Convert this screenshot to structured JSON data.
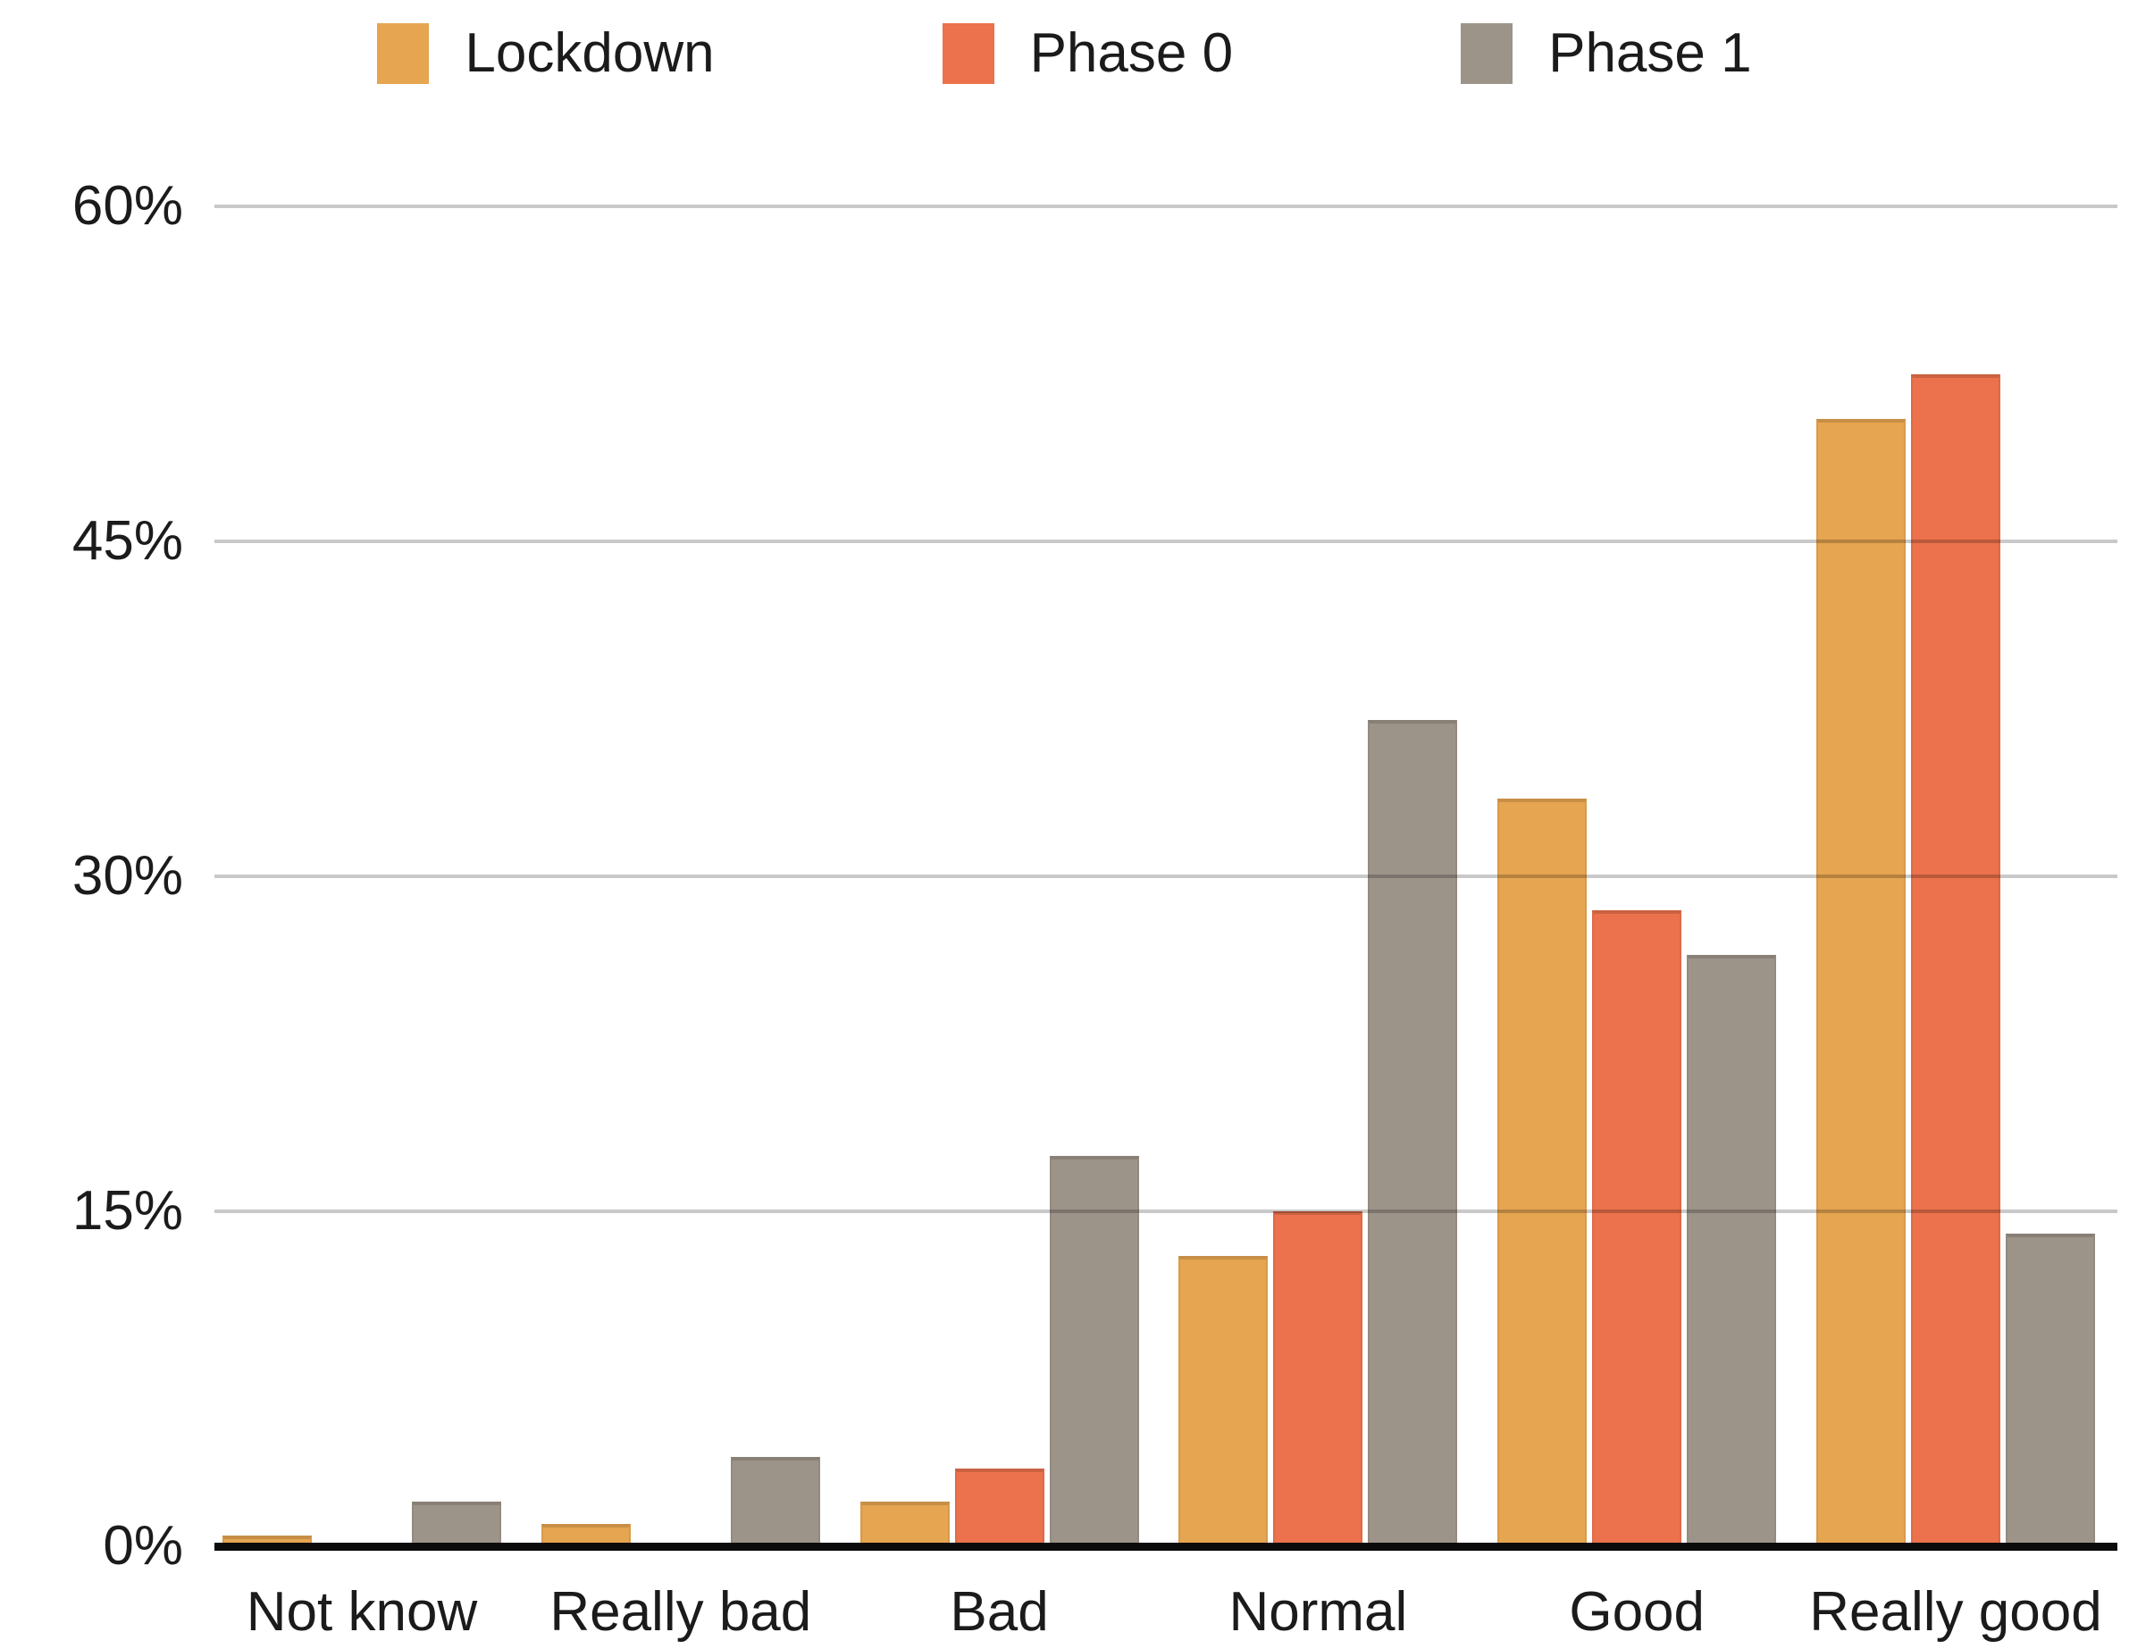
{
  "chart_data": {
    "type": "bar",
    "title": "",
    "xlabel": "",
    "ylabel": "",
    "categories": [
      "Not know",
      "Really bad",
      "Bad",
      "Normal",
      "Good",
      "Really good"
    ],
    "series": [
      {
        "name": "Lockdown",
        "color": "#E6A550",
        "values": [
          0.5,
          1,
          2,
          13,
          33.5,
          50.5
        ]
      },
      {
        "name": "Phase 0",
        "color": "#EB724C",
        "values": [
          0,
          0,
          3.5,
          15,
          28.5,
          52.5
        ]
      },
      {
        "name": "Phase 1",
        "color": "#9D9489",
        "values": [
          2,
          4,
          17.5,
          37,
          26.5,
          14
        ]
      }
    ],
    "y_axis": {
      "unit": "%",
      "ticks": [
        "0%",
        "15%",
        "30%",
        "45%",
        "60%"
      ],
      "tick_values": [
        0,
        15,
        30,
        45,
        60
      ],
      "ylim": [
        0,
        60
      ]
    },
    "grid": "horizontal",
    "legend_position": "top",
    "bar_grouping": "grouped"
  },
  "colors": {
    "background": "#ffffff",
    "text": "#1b1b1b",
    "gridline": "#c9c9c9",
    "axis_line": "#0b0b0b",
    "series_lockdown": "#E6A550",
    "series_phase0": "#EB724C",
    "series_phase1": "#9D9489"
  }
}
